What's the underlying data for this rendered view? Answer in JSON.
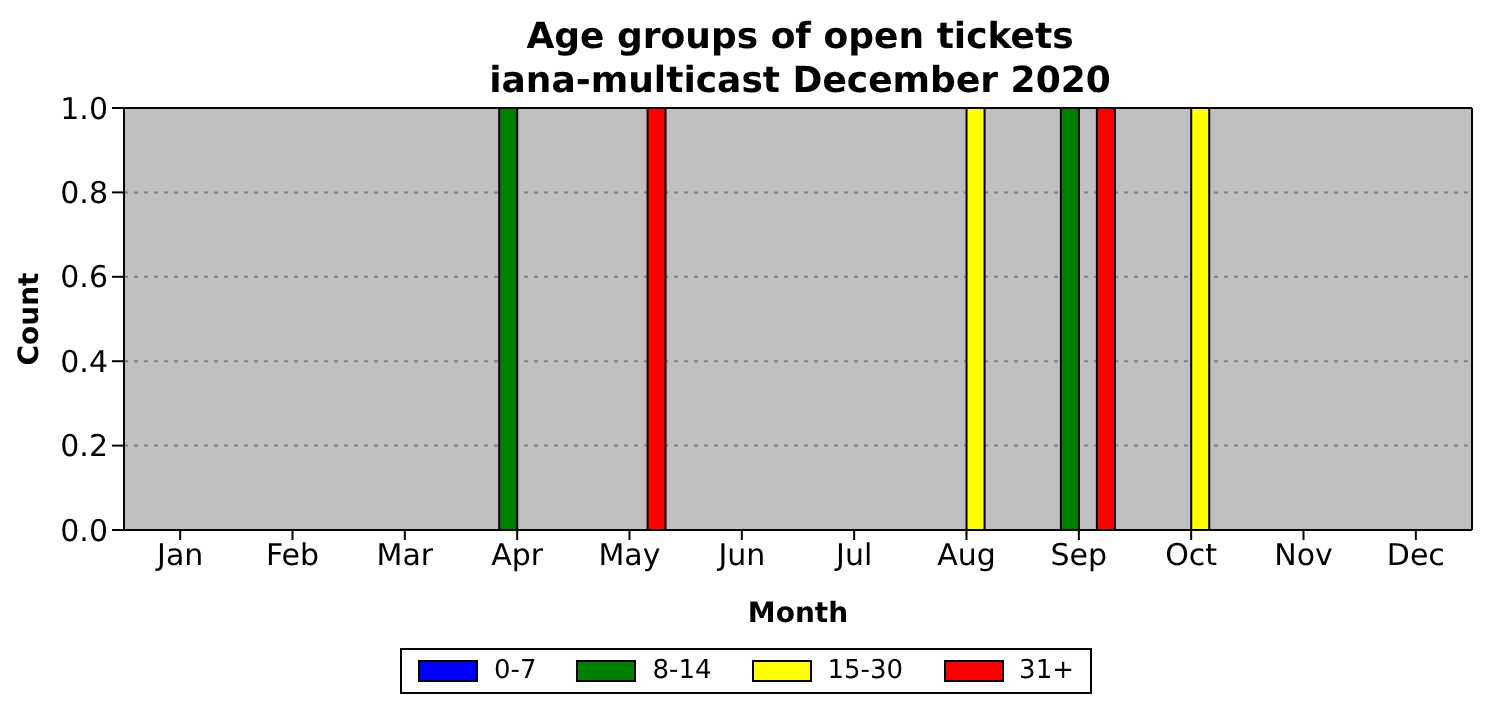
{
  "chart_data": {
    "type": "bar",
    "title": "Age groups of open tickets\niana-multicast December 2020",
    "xlabel": "Month",
    "ylabel": "Count",
    "categories": [
      "Jan",
      "Feb",
      "Mar",
      "Apr",
      "May",
      "Jun",
      "Jul",
      "Aug",
      "Sep",
      "Oct",
      "Nov",
      "Dec"
    ],
    "series": [
      {
        "name": "0-7",
        "color": "#0000ff",
        "values": [
          0,
          0,
          0,
          0,
          0,
          0,
          0,
          0,
          0,
          0,
          0,
          0
        ]
      },
      {
        "name": "8-14",
        "color": "#008000",
        "values": [
          0,
          0,
          0,
          1,
          0,
          0,
          0,
          0,
          1,
          0,
          0,
          0
        ]
      },
      {
        "name": "15-30",
        "color": "#ffff00",
        "values": [
          0,
          0,
          0,
          0,
          0,
          0,
          0,
          1,
          0,
          1,
          0,
          0
        ]
      },
      {
        "name": "31+",
        "color": "#ff0000",
        "values": [
          0,
          0,
          0,
          0,
          1,
          0,
          0,
          0,
          1,
          0,
          0,
          0
        ]
      }
    ],
    "ylim": [
      0,
      1
    ],
    "yticks": [
      {
        "value": 0,
        "label": "0.0"
      },
      {
        "value": 0.2,
        "label": "0.2"
      },
      {
        "value": 0.4,
        "label": "0.4"
      },
      {
        "value": 0.6,
        "label": "0.6"
      },
      {
        "value": 0.8,
        "label": "0.8"
      },
      {
        "value": 1,
        "label": "1.0"
      }
    ],
    "grid": "y",
    "legend": "bottom"
  }
}
